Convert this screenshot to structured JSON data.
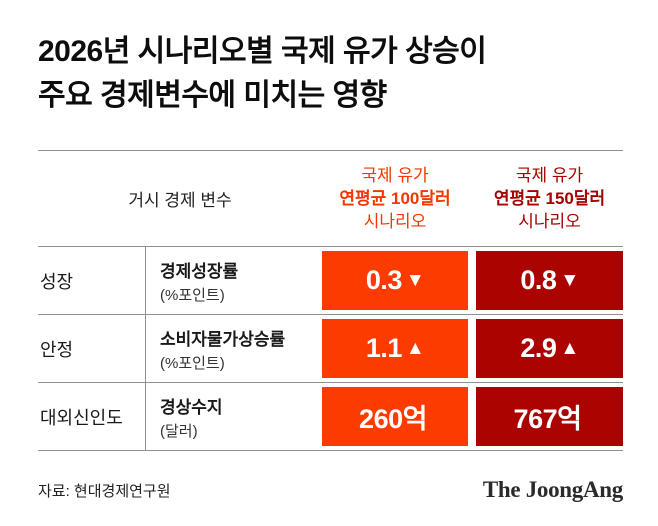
{
  "title": {
    "line1": "2026년 시나리오별 국제 유가 상승이",
    "line2": "주요 경제변수에 미치는 영향"
  },
  "colors": {
    "scenario1_bg": "#fb3b00",
    "scenario1_text": "#f43600",
    "scenario2_bg": "#ab0300",
    "scenario2_text": "#a30300"
  },
  "table": {
    "header": {
      "variable_label": "거시 경제 변수",
      "scenario1": {
        "line1": "국제 유가",
        "line2": "연평균 100달러",
        "line3": "시나리오"
      },
      "scenario2": {
        "line1": "국제 유가",
        "line2": "연평균 150달러",
        "line3": "시나리오"
      }
    },
    "rows": [
      {
        "category": "성장",
        "variable": "경제성장률",
        "unit": "(%포인트)",
        "s1": {
          "value": "0.3",
          "mark": "▼"
        },
        "s2": {
          "value": "0.8",
          "mark": "▼"
        }
      },
      {
        "category": "안정",
        "variable": "소비자물가상승률",
        "unit": "(%포인트)",
        "s1": {
          "value": "1.1",
          "mark": "▲"
        },
        "s2": {
          "value": "2.9",
          "mark": "▲"
        }
      },
      {
        "category": "대외신인도",
        "variable": "경상수지",
        "unit": "(달러)",
        "s1": {
          "value": "260억",
          "mark": ""
        },
        "s2": {
          "value": "767억",
          "mark": ""
        }
      }
    ]
  },
  "footer": {
    "source": "자료: 현대경제연구원",
    "logo": "The JoongAng"
  }
}
